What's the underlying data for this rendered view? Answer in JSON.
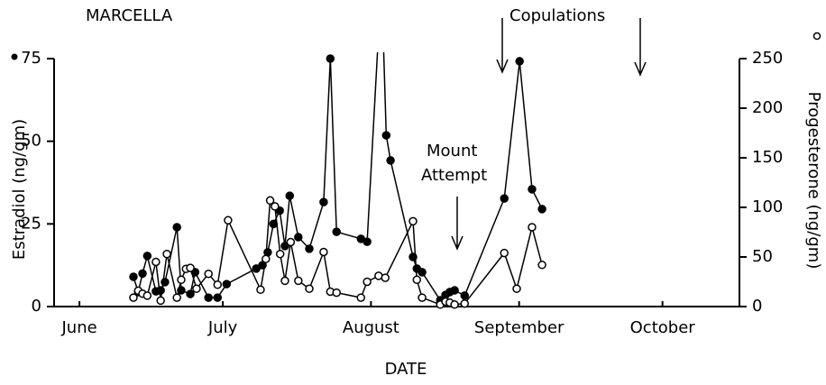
{
  "chart_data": {
    "type": "line",
    "title": "MARCELLA",
    "xlabel": "DATE",
    "ylabel": "Estradiol (ng/gm)",
    "y2label": "Progesterone (ng/gm)",
    "annotations": [
      "Copulations",
      "Mount",
      "Attempt"
    ],
    "xlim": [
      -5.3,
      138.1
    ],
    "xticks": [
      {
        "value": 0,
        "label": "June"
      },
      {
        "value": 30,
        "label": "July"
      },
      {
        "value": 61,
        "label": "August"
      },
      {
        "value": 92,
        "label": "September"
      },
      {
        "value": 122,
        "label": "October"
      }
    ],
    "ylim": [
      0,
      75
    ],
    "yticks": [
      0,
      25,
      50,
      75
    ],
    "y2lim": [
      0,
      250
    ],
    "y2ticks": [
      0,
      50,
      100,
      150,
      200,
      250
    ],
    "series": [
      {
        "color": "#000000",
        "marker": "filled",
        "x": [
          11.3,
          12.3,
          13.2,
          14.2,
          16,
          17,
          17.9,
          20.4,
          21.3,
          23.2,
          24.2,
          27,
          28.9,
          30.8,
          37,
          38.3,
          39.4,
          40.6,
          41.9,
          43,
          44,
          45.8,
          48.1,
          51.1,
          52.5,
          53.8,
          58.9,
          60.2,
          63.2,
          64.2,
          65.1,
          69.8,
          70.6,
          71.7,
          75.5,
          76.6,
          77.5,
          78.5,
          80.6,
          88.9,
          92.1,
          94.7,
          96.8
        ],
        "values": [
          9,
          4.4,
          10,
          15.3,
          4.6,
          4.9,
          7.4,
          24,
          4.9,
          3.8,
          10.4,
          2.7,
          2.7,
          6.8,
          11.5,
          12.5,
          16.4,
          25,
          29,
          18.3,
          33.5,
          21,
          17.5,
          31.6,
          75,
          22.6,
          20.5,
          19.6,
          99,
          51.8,
          44.2,
          15,
          11.5,
          10.4,
          1.9,
          3.5,
          4.4,
          4.9,
          3.3,
          32.7,
          74.2,
          35.5,
          29.5
        ]
      },
      {
        "color": "#000000",
        "marker": "open",
        "axis": "y2",
        "x": [
          11.3,
          12.3,
          13.2,
          14.2,
          16,
          17,
          18.3,
          20.4,
          21.3,
          22.3,
          23.2,
          24.5,
          27,
          28.9,
          31.1,
          37.9,
          39,
          39.9,
          40.9,
          42,
          43,
          44.2,
          45.8,
          48.1,
          51.1,
          52.5,
          53.8,
          58.9,
          60.2,
          62.6,
          64,
          69.8,
          70.6,
          71.7,
          75.5,
          76.6,
          77.5,
          78.5,
          80.6,
          88.9,
          91.5,
          94.7,
          96.8
        ],
        "values": [
          9,
          16,
          13,
          11,
          45,
          6,
          53,
          9,
          27,
          38,
          39,
          18,
          33,
          22,
          87,
          17,
          48,
          107,
          101,
          53,
          26,
          65,
          26,
          18,
          55,
          15,
          14,
          9,
          25,
          31,
          29,
          86,
          27,
          9,
          2,
          5,
          4,
          2,
          3,
          54,
          18,
          80,
          42
        ]
      }
    ]
  }
}
